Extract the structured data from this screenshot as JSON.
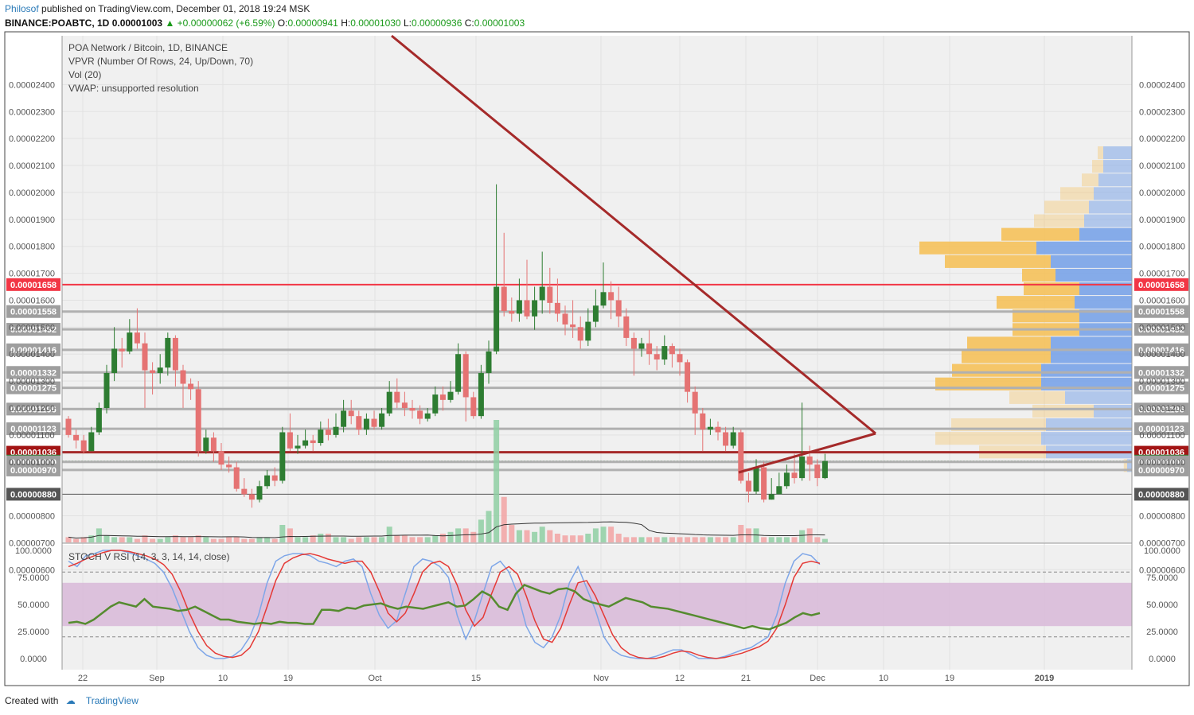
{
  "header": {
    "author": "Philosof",
    "published": "published on TradingView.com, December 01, 2018 19:24 MSK",
    "symbol": "BINANCE:POABTC, 1D",
    "price": "0.00001003",
    "change": "+0.00000062 (+6.59%)",
    "o_label": "O:",
    "o_value": "0.00000941",
    "h_label": "H:",
    "h_value": "0.00001030",
    "l_label": "L:",
    "l_value": "0.00000936",
    "c_label": "C:",
    "c_value": "0.00001003"
  },
  "legend": {
    "line1": "POA Network / Bitcoin, 1D, BINANCE",
    "line2": "VPVR (Number Of Rows, 24, Up/Down, 70)",
    "line3": "Vol (20)",
    "line4": "VWAP: unsupported resolution",
    "stoch": "STOCH V RSI (14, 3, 3, 14, 14, close)"
  },
  "footer": {
    "created": "Created with",
    "brand": "TradingView"
  },
  "colors": {
    "up": "#2e7d32",
    "down": "#e57373",
    "trend": "#a52a2a",
    "stochK": "#7ea6e8",
    "stochD": "#e53935",
    "rsi": "#558b2f",
    "band": "#d8b8d8"
  },
  "chart_data": [
    {
      "type": "candlestick",
      "title": "POA Network / Bitcoin, 1D, BINANCE",
      "x_ticks": [
        "22",
        "Sep",
        "10",
        "19",
        "Oct",
        "15",
        "Nov",
        "12",
        "21",
        "Dec",
        "10",
        "19",
        "2019"
      ],
      "y_ticks": [
        "0.00000600",
        "0.00000700",
        "0.00000800",
        "0.00001000",
        "0.00001100",
        "0.00001200",
        "0.00001300",
        "0.00001400",
        "0.00001500",
        "0.00001600",
        "0.00001700",
        "0.00001800",
        "0.00001900",
        "0.00002000",
        "0.00002100",
        "0.00002200",
        "0.00002300",
        "0.00002400"
      ],
      "ylim": [
        5.7e-06,
        2.5e-06
      ],
      "candles": [
        [
          11.6,
          11.0,
          11.7,
          10.9
        ],
        [
          11.0,
          10.8,
          11.2,
          10.5
        ],
        [
          10.8,
          10.4,
          11.0,
          10.3
        ],
        [
          10.4,
          11.1,
          11.3,
          10.4
        ],
        [
          11.1,
          12.0,
          12.2,
          11.0
        ],
        [
          12.0,
          13.3,
          13.6,
          11.8
        ],
        [
          13.3,
          14.2,
          15.0,
          13.0
        ],
        [
          14.2,
          14.1,
          14.6,
          13.5
        ],
        [
          14.1,
          14.8,
          15.3,
          14.0
        ],
        [
          14.8,
          14.4,
          15.7,
          14.2
        ],
        [
          14.4,
          13.4,
          14.8,
          12.0
        ],
        [
          13.4,
          13.3,
          13.7,
          12.5
        ],
        [
          13.3,
          13.5,
          14.0,
          12.9
        ],
        [
          13.5,
          14.6,
          14.8,
          13.2
        ],
        [
          14.6,
          13.4,
          14.7,
          12.8
        ],
        [
          13.4,
          12.9,
          13.6,
          12.0
        ],
        [
          12.9,
          12.7,
          13.1,
          12.3
        ],
        [
          12.7,
          10.4,
          13.0,
          10.2
        ],
        [
          10.4,
          10.9,
          11.2,
          10.3
        ],
        [
          10.9,
          10.4,
          11.1,
          10.0
        ],
        [
          10.4,
          9.9,
          10.7,
          9.7
        ],
        [
          9.9,
          9.8,
          10.2,
          9.6
        ],
        [
          9.8,
          9.0,
          10.0,
          8.9
        ],
        [
          9.0,
          8.8,
          9.4,
          8.7
        ],
        [
          8.8,
          8.6,
          9.0,
          8.3
        ],
        [
          8.6,
          9.1,
          9.3,
          8.5
        ],
        [
          9.1,
          9.5,
          9.7,
          9.0
        ],
        [
          9.5,
          9.3,
          9.8,
          9.1
        ],
        [
          9.3,
          11.1,
          11.3,
          9.2
        ],
        [
          11.1,
          10.5,
          11.8,
          10.4
        ],
        [
          10.5,
          10.6,
          11.0,
          10.3
        ],
        [
          10.6,
          10.8,
          11.2,
          10.5
        ],
        [
          10.8,
          10.7,
          11.0,
          10.4
        ],
        [
          10.7,
          11.2,
          11.5,
          10.6
        ],
        [
          11.2,
          11.0,
          11.6,
          10.8
        ],
        [
          11.0,
          11.3,
          11.8,
          10.9
        ],
        [
          11.3,
          11.9,
          12.3,
          11.1
        ],
        [
          11.9,
          11.7,
          12.3,
          11.4
        ],
        [
          11.7,
          11.2,
          11.9,
          11.0
        ],
        [
          11.2,
          11.6,
          11.8,
          11.0
        ],
        [
          11.6,
          11.3,
          11.9,
          11.2
        ],
        [
          11.3,
          11.8,
          12.0,
          11.2
        ],
        [
          11.8,
          12.6,
          13.0,
          11.7
        ],
        [
          12.6,
          12.2,
          13.1,
          12.0
        ],
        [
          12.2,
          12.0,
          12.6,
          11.7
        ],
        [
          12.0,
          11.9,
          12.3,
          11.6
        ],
        [
          11.9,
          11.6,
          12.1,
          11.4
        ],
        [
          11.6,
          11.8,
          12.0,
          11.5
        ],
        [
          11.8,
          12.5,
          12.8,
          11.7
        ],
        [
          12.5,
          12.3,
          12.8,
          11.9
        ],
        [
          12.3,
          12.6,
          13.0,
          12.2
        ],
        [
          12.6,
          14.0,
          14.4,
          12.5
        ],
        [
          14.0,
          12.4,
          14.1,
          11.5
        ],
        [
          12.4,
          11.7,
          12.6,
          11.6
        ],
        [
          11.7,
          13.3,
          13.6,
          11.6
        ],
        [
          13.3,
          14.1,
          14.5,
          12.9
        ],
        [
          14.1,
          16.5,
          20.3,
          14.0
        ],
        [
          16.5,
          15.6,
          18.5,
          15.4
        ],
        [
          15.6,
          15.5,
          16.1,
          15.2
        ],
        [
          15.5,
          16.0,
          16.8,
          15.2
        ],
        [
          16.0,
          15.4,
          17.5,
          15.3
        ],
        [
          15.4,
          16.0,
          16.5,
          14.9
        ],
        [
          16.0,
          16.5,
          17.8,
          15.5
        ],
        [
          16.5,
          15.9,
          17.2,
          15.5
        ],
        [
          15.9,
          15.5,
          16.8,
          15.2
        ],
        [
          15.5,
          15.1,
          15.8,
          14.7
        ],
        [
          15.1,
          15.0,
          16.0,
          14.6
        ],
        [
          15.0,
          14.5,
          15.4,
          14.2
        ],
        [
          14.5,
          15.2,
          15.7,
          14.3
        ],
        [
          15.2,
          15.8,
          16.4,
          15.0
        ],
        [
          15.8,
          16.3,
          17.4,
          15.7
        ],
        [
          16.3,
          16.0,
          16.7,
          15.3
        ],
        [
          16.0,
          15.4,
          16.5,
          15.0
        ],
        [
          15.4,
          14.6,
          15.7,
          14.3
        ],
        [
          14.6,
          14.2,
          14.8,
          13.2
        ],
        [
          14.2,
          14.4,
          14.6,
          13.9
        ],
        [
          14.4,
          14.0,
          14.9,
          13.6
        ],
        [
          14.0,
          13.8,
          14.3,
          13.4
        ],
        [
          13.8,
          14.3,
          14.7,
          13.6
        ],
        [
          14.3,
          14.0,
          14.4,
          13.5
        ],
        [
          14.0,
          13.7,
          14.2,
          13.2
        ],
        [
          13.7,
          12.6,
          13.8,
          12.2
        ],
        [
          12.6,
          11.8,
          12.8,
          11.0
        ],
        [
          11.8,
          11.2,
          12.0,
          10.4
        ],
        [
          11.2,
          11.3,
          11.6,
          11.0
        ],
        [
          11.3,
          11.1,
          11.5,
          10.8
        ],
        [
          11.1,
          10.6,
          11.3,
          10.4
        ],
        [
          10.6,
          11.1,
          11.3,
          10.5
        ],
        [
          11.1,
          9.3,
          11.2,
          9.2
        ],
        [
          9.3,
          8.9,
          9.6,
          8.5
        ],
        [
          8.9,
          9.8,
          10.1,
          8.8
        ],
        [
          9.8,
          8.6,
          10.0,
          8.5
        ],
        [
          8.6,
          8.8,
          9.4,
          8.6
        ],
        [
          8.8,
          9.1,
          9.6,
          8.8
        ],
        [
          9.1,
          9.6,
          9.9,
          9.0
        ],
        [
          9.6,
          9.4,
          10.3,
          9.2
        ],
        [
          9.4,
          10.2,
          12.2,
          9.3
        ],
        [
          10.2,
          9.9,
          10.6,
          9.3
        ],
        [
          9.9,
          9.4,
          10.1,
          9.1
        ],
        [
          9.4,
          10.03,
          10.3,
          9.36
        ]
      ],
      "volume": [
        0.3,
        0.2,
        0.3,
        0.4,
        0.8,
        0.4,
        0.3,
        0.3,
        0.3,
        0.2,
        0.4,
        0.2,
        0.2,
        0.3,
        0.4,
        0.3,
        0.3,
        0.4,
        0.3,
        0.2,
        0.2,
        0.3,
        0.3,
        0.2,
        0.2,
        0.3,
        0.3,
        0.2,
        1.0,
        0.8,
        0.3,
        0.3,
        0.4,
        0.5,
        0.5,
        0.3,
        0.3,
        0.2,
        0.3,
        0.3,
        0.3,
        0.3,
        0.9,
        0.4,
        0.4,
        0.3,
        0.3,
        0.3,
        0.4,
        0.5,
        0.6,
        0.8,
        0.8,
        0.6,
        1.3,
        1.8,
        7.0,
        2.6,
        1.0,
        0.7,
        0.7,
        0.6,
        0.9,
        0.7,
        0.5,
        0.4,
        0.4,
        0.4,
        0.5,
        0.8,
        0.9,
        0.9,
        0.5,
        0.3,
        0.3,
        0.3,
        0.3,
        0.3,
        0.3,
        0.3,
        0.3,
        0.3,
        0.3,
        0.3,
        0.3,
        0.3,
        0.3,
        0.3,
        1.0,
        0.8,
        0.8,
        0.3,
        0.3,
        0.3,
        0.3,
        0.3,
        0.7,
        0.8,
        0.3,
        0.2
      ],
      "horizontal_levels": [
        {
          "label": "0.00001658",
          "kind": "resistance-red"
        },
        {
          "label": "0.00001558",
          "kind": "gray"
        },
        {
          "label": "0.00001492",
          "kind": "gray"
        },
        {
          "label": "0.00001416",
          "kind": "gray"
        },
        {
          "label": "0.00001332",
          "kind": "gray"
        },
        {
          "label": "0.00001275",
          "kind": "gray"
        },
        {
          "label": "0.00001196",
          "kind": "gray"
        },
        {
          "label": "0.00001123",
          "kind": "gray"
        },
        {
          "label": "0.00001036",
          "kind": "darkred"
        },
        {
          "label": "0.00001003",
          "kind": "current-green"
        },
        {
          "label": "0.00001000",
          "kind": "gray"
        },
        {
          "label": "0.00000970",
          "kind": "gray"
        },
        {
          "label": "0.00000880",
          "kind": "dark"
        }
      ],
      "vpvr_rows": [
        {
          "up": 0.3,
          "down": 0.05
        },
        {
          "up": 0.3,
          "down": 0.1
        },
        {
          "up": 0.35,
          "down": 0.15
        },
        {
          "up": 0.4,
          "down": 0.3
        },
        {
          "up": 0.45,
          "down": 0.4
        },
        {
          "up": 0.5,
          "down": 0.45
        },
        {
          "up": 0.55,
          "down": 0.7
        },
        {
          "up": 1.0,
          "down": 1.05
        },
        {
          "up": 0.85,
          "down": 0.95
        },
        {
          "up": 0.8,
          "down": 0.3
        },
        {
          "up": 0.55,
          "down": 0.5
        },
        {
          "up": 0.6,
          "down": 0.7
        },
        {
          "up": 0.55,
          "down": 0.6
        },
        {
          "up": 0.55,
          "down": 0.6
        },
        {
          "up": 0.85,
          "down": 0.75
        },
        {
          "up": 0.85,
          "down": 0.8
        },
        {
          "up": 0.95,
          "down": 0.8
        },
        {
          "up": 0.95,
          "down": 0.95
        },
        {
          "up": 0.7,
          "down": 0.5
        },
        {
          "up": 0.4,
          "down": 0.55
        },
        {
          "up": 0.9,
          "down": 0.85
        },
        {
          "up": 0.95,
          "down": 0.95
        },
        {
          "up": 0.9,
          "down": 0.6
        },
        {
          "up": 0.05,
          "down": 0.03
        }
      ]
    },
    {
      "type": "line",
      "title": "STOCH V RSI (14, 3, 3, 14, 14, close)",
      "y_ticks": [
        "100.0000",
        "75.0000",
        "50.0000",
        "25.0000",
        "0.0000"
      ],
      "ylim": [
        0,
        100
      ],
      "band": [
        30,
        70
      ],
      "dashed_levels": [
        80,
        20
      ],
      "series": [
        {
          "name": "K",
          "values": [
            90,
            85,
            95,
            97,
            100,
            100,
            100,
            98,
            95,
            92,
            88,
            80,
            65,
            45,
            25,
            10,
            3,
            0,
            0,
            2,
            8,
            20,
            40,
            70,
            90,
            95,
            97,
            97,
            95,
            90,
            88,
            85,
            90,
            92,
            85,
            60,
            40,
            28,
            35,
            60,
            85,
            92,
            90,
            85,
            75,
            40,
            18,
            35,
            60,
            85,
            90,
            80,
            60,
            30,
            15,
            10,
            20,
            40,
            70,
            85,
            65,
            45,
            20,
            8,
            3,
            1,
            0,
            0,
            2,
            5,
            8,
            8,
            4,
            0,
            0,
            0,
            2,
            5,
            8,
            10,
            15,
            20,
            40,
            70,
            90,
            97,
            95,
            87
          ]
        },
        {
          "name": "D",
          "values": [
            85,
            88,
            92,
            95,
            98,
            100,
            100,
            99,
            97,
            95,
            92,
            87,
            78,
            62,
            42,
            25,
            12,
            5,
            2,
            1,
            3,
            10,
            25,
            48,
            72,
            88,
            93,
            96,
            97,
            95,
            92,
            90,
            88,
            90,
            90,
            80,
            62,
            42,
            34,
            42,
            60,
            80,
            88,
            90,
            85,
            68,
            45,
            30,
            38,
            60,
            80,
            85,
            78,
            58,
            35,
            18,
            15,
            28,
            50,
            70,
            72,
            58,
            40,
            22,
            10,
            4,
            1,
            0,
            0,
            2,
            5,
            7,
            6,
            3,
            1,
            0,
            1,
            3,
            5,
            8,
            11,
            16,
            28,
            50,
            75,
            88,
            90,
            88
          ]
        },
        {
          "name": "RSI",
          "values": [
            33,
            34,
            32,
            36,
            42,
            48,
            52,
            50,
            48,
            55,
            48,
            47,
            46,
            44,
            45,
            48,
            44,
            40,
            36,
            36,
            34,
            33,
            32,
            33,
            32,
            34,
            33,
            33,
            32,
            32,
            45,
            45,
            44,
            47,
            46,
            49,
            50,
            51,
            48,
            46,
            48,
            47,
            46,
            48,
            50,
            52,
            48,
            49,
            55,
            62,
            58,
            48,
            45,
            60,
            68,
            65,
            62,
            60,
            64,
            65,
            62,
            55,
            52,
            50,
            48,
            52,
            56,
            54,
            52,
            48,
            47,
            46,
            44,
            42,
            40,
            38,
            36,
            34,
            32,
            30,
            28,
            30,
            28,
            27,
            30,
            33,
            38,
            42,
            40,
            42
          ]
        }
      ]
    }
  ]
}
